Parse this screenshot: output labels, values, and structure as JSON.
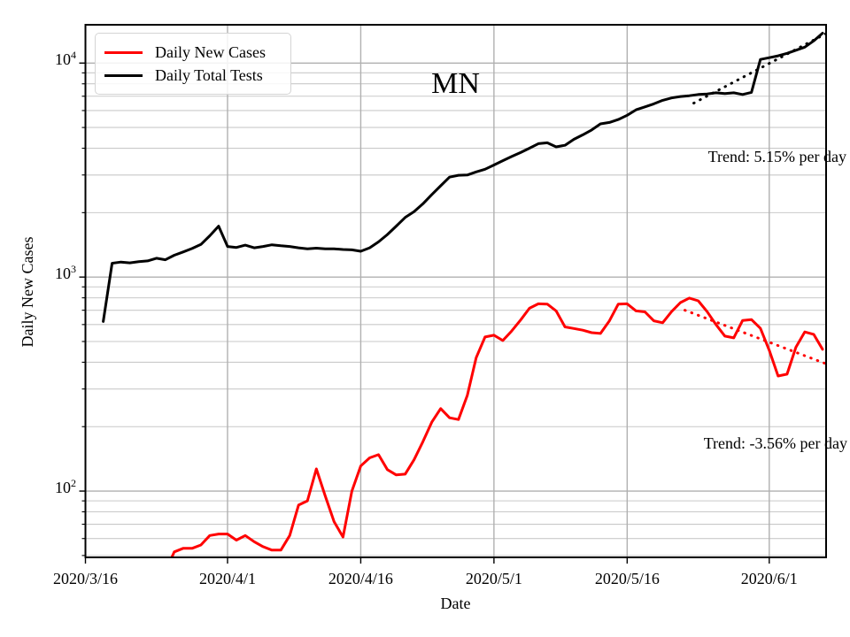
{
  "title": "MN",
  "axes": {
    "xlabel": "Date",
    "ylabel": "Daily New Cases",
    "yscale": "log",
    "x_day0_date": "2020/3/16",
    "xlim_days": [
      0,
      83.4
    ],
    "ylim": [
      49,
      15100
    ],
    "x_ticks": [
      {
        "label": "2020/3/16",
        "day": 0
      },
      {
        "label": "2020/4/1",
        "day": 16
      },
      {
        "label": "2020/4/16",
        "day": 31
      },
      {
        "label": "2020/5/1",
        "day": 46
      },
      {
        "label": "2020/5/16",
        "day": 61
      },
      {
        "label": "2020/6/1",
        "day": 77
      }
    ],
    "y_ticks": [
      {
        "base": "10",
        "exp": "2",
        "value": 100
      },
      {
        "base": "10",
        "exp": "3",
        "value": 1000
      },
      {
        "base": "10",
        "exp": "4",
        "value": 10000
      }
    ],
    "y_minor_gridlines": [
      50,
      60,
      70,
      80,
      90,
      200,
      300,
      400,
      500,
      600,
      700,
      800,
      900,
      2000,
      3000,
      4000,
      5000,
      6000,
      7000,
      8000,
      9000
    ]
  },
  "legend": {
    "items": [
      {
        "label": "Daily New Cases",
        "color": "#ff0000"
      },
      {
        "label": "Daily Total Tests",
        "color": "#000000"
      }
    ]
  },
  "colors": {
    "background": "#ffffff",
    "axis": "#000000",
    "grid_major": "#b0b0b0",
    "grid_minor": "#c9c9c9",
    "cases_line": "#ff0000",
    "tests_line": "#000000"
  },
  "chart_data": {
    "type": "line",
    "title": "MN",
    "xlabel": "Date",
    "ylabel": "Daily New Cases",
    "x_unit": "days since 2020/3/16",
    "series": [
      {
        "name": "Daily New Cases",
        "color": "#ff0000",
        "start_day": 9,
        "start_date": "2020/3/25",
        "values": [
          42,
          52,
          54,
          54,
          56,
          62,
          63,
          63,
          59,
          62,
          58,
          55,
          53,
          53,
          62,
          86,
          90,
          127,
          95,
          72,
          61,
          100,
          131,
          143,
          148,
          126,
          119,
          120,
          140,
          170,
          210,
          243,
          220,
          216,
          280,
          420,
          525,
          535,
          505,
          560,
          630,
          715,
          750,
          748,
          695,
          585,
          575,
          565,
          550,
          545,
          625,
          748,
          750,
          695,
          688,
          625,
          612,
          690,
          760,
          798,
          775,
          690,
          600,
          530,
          520,
          627,
          633,
          576,
          455,
          345,
          352,
          470,
          554,
          540,
          460
        ]
      },
      {
        "name": "Daily Total Tests",
        "color": "#000000",
        "start_day": 2,
        "start_date": "2020/3/18",
        "values": [
          620,
          1160,
          1175,
          1165,
          1180,
          1190,
          1225,
          1205,
          1265,
          1310,
          1360,
          1420,
          1560,
          1730,
          1390,
          1375,
          1410,
          1370,
          1390,
          1415,
          1400,
          1390,
          1370,
          1355,
          1365,
          1355,
          1355,
          1345,
          1340,
          1320,
          1370,
          1460,
          1580,
          1730,
          1900,
          2020,
          2200,
          2430,
          2670,
          2930,
          2990,
          3000,
          3100,
          3190,
          3340,
          3500,
          3660,
          3820,
          4000,
          4200,
          4240,
          4060,
          4130,
          4400,
          4620,
          4870,
          5200,
          5280,
          5450,
          5700,
          6050,
          6240,
          6450,
          6700,
          6870,
          6980,
          7040,
          7130,
          7170,
          7260,
          7200,
          7260,
          7130,
          7300,
          10400,
          10600,
          10810,
          11100,
          11480,
          11870,
          12700,
          13800
        ]
      }
    ],
    "trends": [
      {
        "label": "Trend: 5.15% per day",
        "series": "Daily Total Tests",
        "rate_pct_per_day": 5.15,
        "start_day": 68.5,
        "end_day": 83.4,
        "start_value": 6500,
        "color": "#000000"
      },
      {
        "label": "Trend: -3.56% per day",
        "series": "Daily New Cases",
        "rate_pct_per_day": -3.56,
        "start_day": 67.5,
        "end_day": 83.4,
        "start_value": 700,
        "color": "#ff0000"
      }
    ]
  }
}
